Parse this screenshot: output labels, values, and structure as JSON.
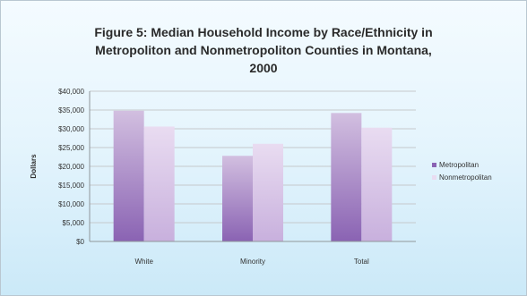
{
  "chart_data": {
    "type": "bar",
    "title_lines": [
      "Figure 5: Median Household Income by Race/Ethnicity in",
      "Metropoliton and Nonmetropoliton Counties in Montana,",
      "2000"
    ],
    "xlabel": "",
    "ylabel": "Dollars",
    "categories": [
      "White",
      "Minority",
      "Total"
    ],
    "series": [
      {
        "name": "Metropolitan",
        "values": [
          34800,
          22800,
          34200
        ]
      },
      {
        "name": "Nonmetropolitan",
        "values": [
          30600,
          26000,
          30300
        ]
      }
    ],
    "ylim": [
      0,
      40000
    ],
    "yticks": [
      "$0",
      "$5,000",
      "$10,000",
      "$15,000",
      "$20,000",
      "$25,000",
      "$30,000",
      "$35,000",
      "$40,000"
    ],
    "grid": true,
    "legend_position": "right"
  },
  "colors": {
    "metropolitan_top": "#d2bfe0",
    "metropolitan_bottom": "#8a63b3",
    "nonmetropolitan_top": "#e9dcf1",
    "nonmetropolitan_bottom": "#c8b0dd",
    "gridline": "#c5c9cc"
  }
}
